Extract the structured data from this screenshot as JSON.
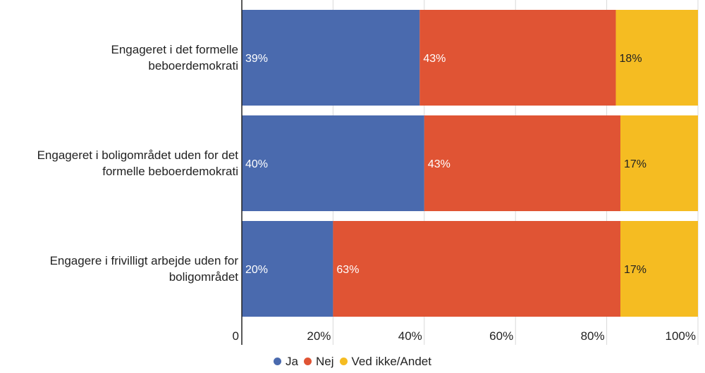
{
  "chart_data": {
    "type": "bar",
    "orientation": "horizontal",
    "stacked": true,
    "categories": [
      "Engageret i det formelle beboerdemokrati",
      "Engageret i boligområdet uden for det formelle beboerdemokrati",
      "Engagere i frivilligt arbejde uden for boligområdet"
    ],
    "category_lines": [
      [
        "Engageret i det formelle",
        "beboerdemokrati"
      ],
      [
        "Engageret i boligområdet uden for det",
        "formelle beboerdemokrati"
      ],
      [
        "Engagere i frivilligt arbejde uden for",
        "boligområdet"
      ]
    ],
    "series": [
      {
        "name": "Ja",
        "color": "#4a6aae",
        "values": [
          39,
          40,
          20
        ],
        "labels": [
          "39%",
          "40%",
          "20%"
        ],
        "label_color": "#ffffff"
      },
      {
        "name": "Nej",
        "color": "#e05434",
        "values": [
          43,
          43,
          63
        ],
        "labels": [
          "43%",
          "43%",
          "63%"
        ],
        "label_color": "#ffffff"
      },
      {
        "name": "Ved ikke/Andet",
        "color": "#f5bc22",
        "values": [
          18,
          17,
          17
        ],
        "labels": [
          "18%",
          "17%",
          "17%"
        ],
        "label_color": "#222222"
      }
    ],
    "xlim": [
      0,
      100
    ],
    "x_ticks": [
      "0",
      "20%",
      "40%",
      "60%",
      "80%",
      "100%"
    ],
    "grid": true,
    "legend_position": "bottom"
  }
}
